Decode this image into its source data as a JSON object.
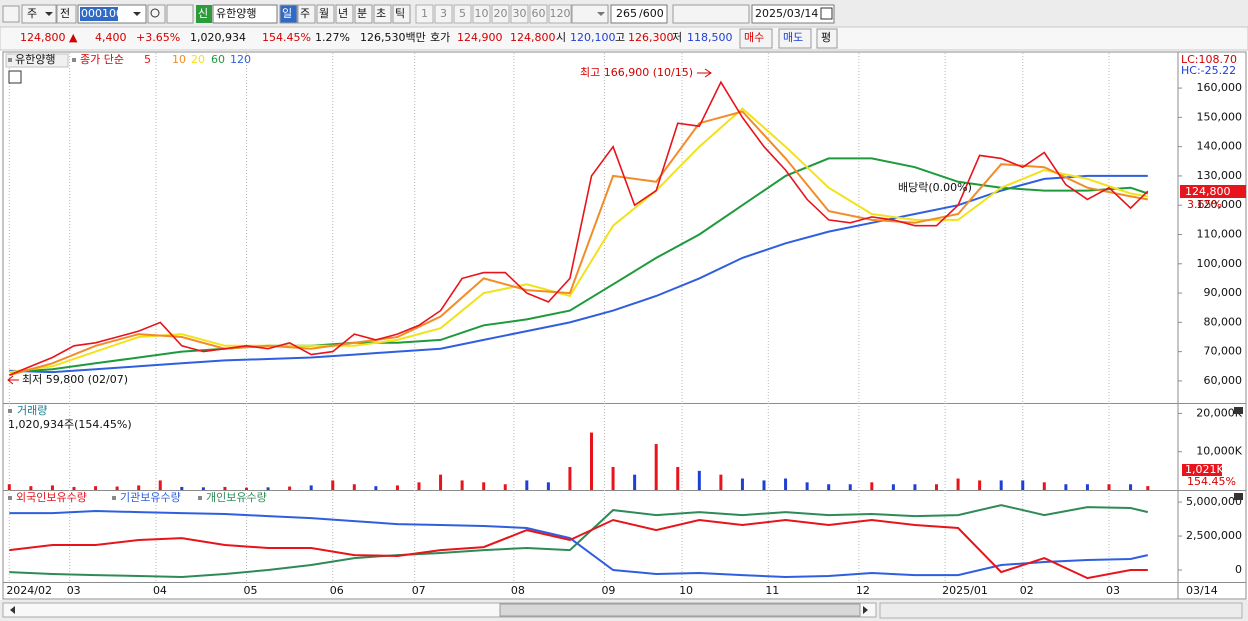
{
  "toolbar": {
    "period": "주",
    "prev": "전",
    "code": "000100",
    "badge": "신",
    "name": "유한양행",
    "intervals": [
      "일",
      "주",
      "월",
      "년",
      "분",
      "초",
      "틱"
    ],
    "minutes": [
      "1",
      "3",
      "5",
      "10",
      "20",
      "30",
      "60",
      "120"
    ],
    "count": "265",
    "count_max": "/600",
    "date": "2025/03/14"
  },
  "quote": {
    "price": "124,800 ▲",
    "change": "4,400",
    "change_pct": "+3.65%",
    "volume": "1,020,934",
    "volume_ratio": "154.45%",
    "turnover": "1.27%",
    "amount": "126,530백만",
    "ask_label": "호가",
    "ask": "124,900",
    "bid": "124,800",
    "open_label": "시",
    "open": "120,100",
    "high_label": "고",
    "high": "126,300",
    "low_label": "저",
    "low": "118,500",
    "buy": "매수",
    "sell": "매도",
    "avg": "평"
  },
  "chart_data": [
    {
      "type": "line",
      "title": "유한양행",
      "legend_prefix": "종가 단순",
      "xlim": [
        -1,
        271
      ],
      "ylim": [
        52800,
        171300
      ],
      "yticks": [
        {
          "value": 60000,
          "label": "60,000"
        },
        {
          "value": 70000,
          "label": "70,000"
        },
        {
          "value": 80000,
          "label": "80,000"
        },
        {
          "value": 90000,
          "label": "90,000"
        },
        {
          "value": 100000,
          "label": "100,000"
        },
        {
          "value": 110000,
          "label": "110,000"
        },
        {
          "value": 120000,
          "label": "120,000"
        },
        {
          "value": 130000,
          "label": "130,000"
        },
        {
          "value": 140000,
          "label": "140,000"
        },
        {
          "value": 150000,
          "label": "150,000"
        },
        {
          "value": 160000,
          "label": "160,000"
        }
      ],
      "series": [
        {
          "name": "5",
          "color": "#e8141b",
          "x": [
            0,
            5,
            10,
            15,
            20,
            25,
            30,
            35,
            40,
            45,
            50,
            55,
            60,
            65,
            70,
            75,
            80,
            85,
            90,
            95,
            100,
            105,
            110,
            115,
            120,
            125,
            130,
            135,
            140,
            145,
            150,
            155,
            160,
            165,
            170,
            175,
            180,
            185,
            190,
            195,
            200,
            205,
            210,
            215,
            220,
            225,
            230,
            235,
            240,
            245,
            250,
            255,
            260,
            264
          ],
          "values": [
            62000,
            65000,
            68000,
            72000,
            73000,
            75000,
            77000,
            80000,
            72000,
            70000,
            71000,
            72000,
            71000,
            73000,
            69000,
            70000,
            76000,
            74000,
            76000,
            79000,
            84000,
            95000,
            97000,
            97000,
            90000,
            87000,
            95000,
            130000,
            140000,
            120000,
            125000,
            148000,
            147000,
            162000,
            150000,
            140000,
            132000,
            122000,
            115000,
            114000,
            116000,
            115000,
            113000,
            113000,
            120000,
            137000,
            136000,
            133000,
            138000,
            127000,
            122000,
            126000,
            119000,
            124800
          ]
        },
        {
          "name": "10",
          "color": "#f28c28",
          "x": [
            0,
            10,
            20,
            30,
            40,
            50,
            60,
            70,
            80,
            90,
            100,
            110,
            120,
            130,
            140,
            150,
            160,
            170,
            180,
            190,
            200,
            210,
            220,
            230,
            240,
            250,
            260,
            264
          ],
          "values": [
            62000,
            66000,
            72000,
            76000,
            75000,
            71000,
            72000,
            71000,
            73000,
            75000,
            82000,
            95000,
            91000,
            90000,
            130000,
            128000,
            148000,
            152000,
            136000,
            118000,
            115000,
            114000,
            117000,
            134000,
            133000,
            126000,
            123000,
            122000
          ]
        },
        {
          "name": "20",
          "color": "#f2e21a",
          "x": [
            0,
            10,
            20,
            30,
            40,
            50,
            60,
            70,
            80,
            90,
            100,
            110,
            120,
            130,
            140,
            150,
            160,
            170,
            180,
            190,
            200,
            210,
            220,
            230,
            240,
            250,
            260,
            264
          ],
          "values": [
            63000,
            65000,
            70000,
            75000,
            76000,
            72000,
            72000,
            72000,
            72000,
            74000,
            78000,
            90000,
            93000,
            89000,
            113000,
            125000,
            140000,
            153000,
            140000,
            126000,
            117000,
            115000,
            115000,
            126000,
            132000,
            129000,
            124000,
            123000
          ]
        },
        {
          "name": "60",
          "color": "#1e9a3c",
          "x": [
            0,
            10,
            20,
            30,
            40,
            50,
            60,
            70,
            80,
            90,
            100,
            110,
            120,
            130,
            140,
            150,
            160,
            170,
            180,
            190,
            200,
            210,
            220,
            230,
            240,
            250,
            260,
            264
          ],
          "values": [
            63000,
            64000,
            66000,
            68000,
            70000,
            71000,
            72000,
            72000,
            73000,
            73000,
            74000,
            79000,
            81000,
            84000,
            93000,
            102000,
            110000,
            120000,
            130000,
            136000,
            136000,
            133000,
            128000,
            126000,
            125000,
            125000,
            126000,
            124000
          ]
        },
        {
          "name": "120",
          "color": "#2f5fe0",
          "x": [
            0,
            10,
            20,
            30,
            40,
            50,
            60,
            70,
            80,
            90,
            100,
            110,
            120,
            130,
            140,
            150,
            160,
            170,
            180,
            190,
            200,
            210,
            220,
            230,
            240,
            250,
            260,
            264
          ],
          "values": [
            63500,
            63000,
            64000,
            65000,
            66000,
            67000,
            67500,
            68000,
            69000,
            70000,
            71000,
            74000,
            77000,
            80000,
            84000,
            89000,
            95000,
            102000,
            107000,
            111000,
            114000,
            117000,
            120000,
            125000,
            129000,
            130000,
            130000,
            130000
          ]
        }
      ],
      "high_label": "최고 166,900 (10/15)",
      "low_label": "최저 59,800 (02/07)",
      "ex_dividend_label": "배당락(0.00%)",
      "lc_label": "LC:108.70",
      "hc_label": "HC:-25.22",
      "last_price_label": "124,800",
      "last_change_label": "3.65%"
    },
    {
      "type": "bar",
      "title": "거래량",
      "subtitle": "1,020,934주(154.45%)",
      "xlim": [
        -1,
        271
      ],
      "ylim": [
        0,
        22200
      ],
      "yticks": [
        {
          "value": 10000,
          "label": "10,000K"
        },
        {
          "value": 20000,
          "label": "20,000K"
        }
      ],
      "up_color": "#e8141b",
      "down_color": "#1e3fd4",
      "x": [
        0,
        5,
        10,
        15,
        20,
        25,
        30,
        35,
        40,
        45,
        50,
        55,
        60,
        65,
        70,
        75,
        80,
        85,
        90,
        95,
        100,
        105,
        110,
        115,
        120,
        125,
        130,
        135,
        140,
        145,
        150,
        155,
        160,
        165,
        170,
        175,
        180,
        185,
        190,
        195,
        200,
        205,
        210,
        215,
        220,
        225,
        230,
        235,
        240,
        245,
        250,
        255,
        260,
        264
      ],
      "values": [
        1500,
        1000,
        1200,
        800,
        1000,
        900,
        1200,
        2500,
        800,
        700,
        800,
        600,
        700,
        900,
        1200,
        2500,
        1500,
        1000,
        1200,
        2000,
        4000,
        2500,
        2000,
        1500,
        2500,
        2000,
        6000,
        15000,
        6000,
        4000,
        12000,
        6000,
        5000,
        4000,
        3000,
        2500,
        3000,
        2000,
        1500,
        1500,
        2000,
        1500,
        1500,
        1500,
        3000,
        2500,
        2500,
        2500,
        2000,
        1500,
        1500,
        1500,
        1500,
        1021
      ],
      "last_label": "1,021K",
      "last_ratio_label": "154.45%"
    },
    {
      "type": "line",
      "xlim": [
        -1,
        271
      ],
      "ylim": [
        -880000,
        5740000
      ],
      "yticks": [
        {
          "value": 5000000,
          "label": "5,000,000"
        },
        {
          "value": 2500000,
          "label": "2,500,000"
        },
        0
      ],
      "xticks": [
        {
          "value": 0,
          "label": "2024/02"
        },
        {
          "value": 14,
          "label": "03"
        },
        {
          "value": 34,
          "label": "04"
        },
        {
          "value": 55,
          "label": "05"
        },
        {
          "value": 75,
          "label": "06"
        },
        {
          "value": 94,
          "label": "07"
        },
        {
          "value": 117,
          "label": "08"
        },
        {
          "value": 138,
          "label": "09"
        },
        {
          "value": 156,
          "label": "10"
        },
        {
          "value": 176,
          "label": "11"
        },
        {
          "value": 197,
          "label": "12"
        },
        {
          "value": 217,
          "label": "2025/01"
        },
        {
          "value": 235,
          "label": "02"
        },
        {
          "value": 255,
          "label": "03"
        }
      ],
      "x_end_label": "03/14",
      "series": [
        {
          "name": "외국인보유수량",
          "color": "#e8141b",
          "x": [
            0,
            10,
            20,
            30,
            40,
            50,
            60,
            70,
            80,
            90,
            100,
            110,
            120,
            130,
            140,
            150,
            160,
            170,
            180,
            190,
            200,
            210,
            220,
            230,
            240,
            250,
            260,
            264
          ],
          "values": [
            1470000,
            1840000,
            1840000,
            2210000,
            2350000,
            1840000,
            1620000,
            1620000,
            1100000,
            1030000,
            1470000,
            1690000,
            2940000,
            2210000,
            3680000,
            2940000,
            3680000,
            3310000,
            3680000,
            3310000,
            3680000,
            3310000,
            3090000,
            -150000,
            880000,
            -590000,
            0,
            0
          ]
        },
        {
          "name": "기관보유수량",
          "color": "#2f5fe0",
          "x": [
            0,
            10,
            20,
            30,
            40,
            50,
            60,
            70,
            80,
            90,
            100,
            110,
            120,
            130,
            140,
            150,
            160,
            170,
            180,
            190,
            200,
            210,
            220,
            230,
            240,
            250,
            260,
            264
          ],
          "values": [
            4190000,
            4190000,
            4340000,
            4260000,
            4190000,
            4120000,
            3970000,
            3820000,
            3600000,
            3380000,
            3310000,
            3240000,
            3090000,
            2350000,
            0,
            -290000,
            -220000,
            -370000,
            -510000,
            -440000,
            -220000,
            -370000,
            -370000,
            370000,
            590000,
            740000,
            810000,
            1100000
          ]
        },
        {
          "name": "개인보유수량",
          "color": "#2e8b57",
          "x": [
            0,
            10,
            20,
            30,
            40,
            50,
            60,
            70,
            80,
            90,
            100,
            110,
            120,
            130,
            140,
            150,
            160,
            170,
            180,
            190,
            200,
            210,
            220,
            230,
            240,
            250,
            260,
            264
          ],
          "values": [
            -150000,
            -290000,
            -370000,
            -440000,
            -510000,
            -290000,
            0,
            370000,
            880000,
            1100000,
            1250000,
            1470000,
            1620000,
            1470000,
            4410000,
            4040000,
            4260000,
            4040000,
            4260000,
            4040000,
            4120000,
            3970000,
            4040000,
            4780000,
            4040000,
            4630000,
            4560000,
            4260000
          ]
        }
      ]
    }
  ]
}
